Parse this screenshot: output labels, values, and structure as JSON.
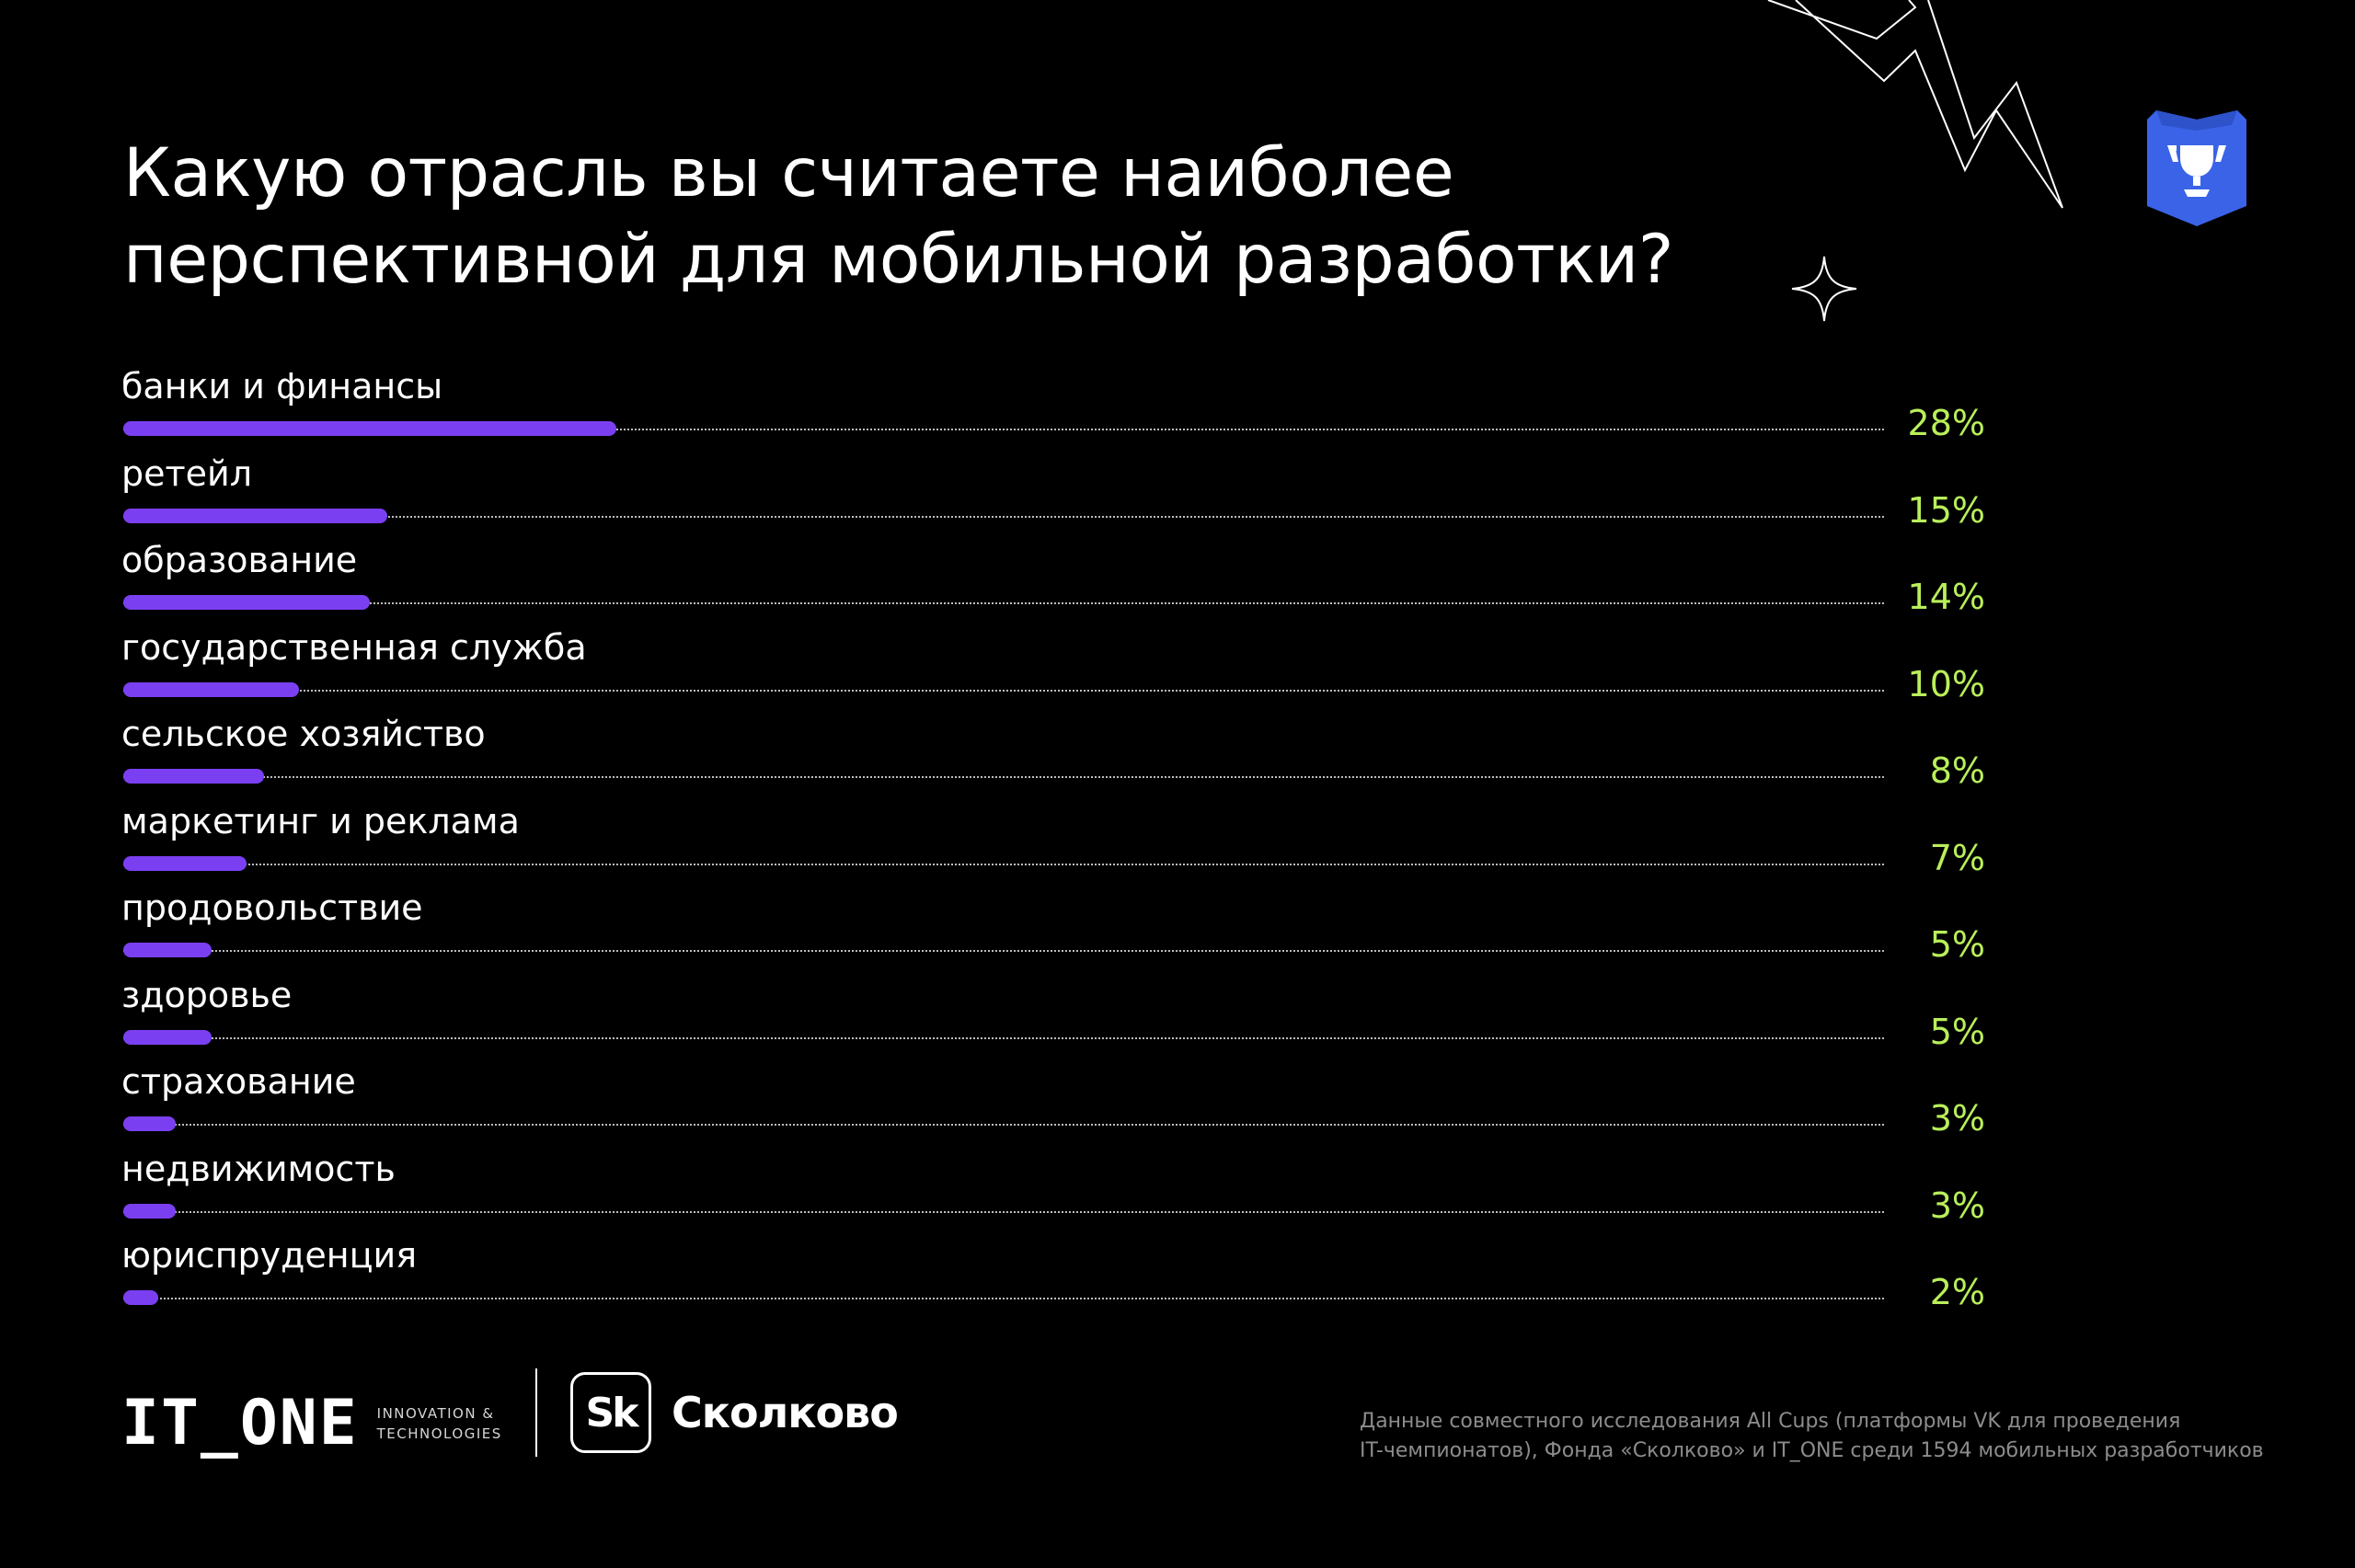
{
  "title_lines": [
    "Какую отрасль вы считаете наиболее",
    "перспективной для мобильной разработки?"
  ],
  "chart_data": {
    "type": "bar",
    "orientation": "horizontal",
    "title": "Какую отрасль вы считаете наиболее перспективной для мобильной разработки?",
    "unit": "%",
    "categories": [
      "банки и финансы",
      "ретейл",
      "образование",
      "государственная служба",
      "сельское хозяйство",
      "маркетинг и реклама",
      "продовольствие",
      "здоровье",
      "страхование",
      "недвижимость",
      "юриспруденция"
    ],
    "values": [
      28,
      15,
      14,
      10,
      8,
      7,
      5,
      5,
      3,
      3,
      2
    ],
    "labels": [
      "28%",
      "15%",
      "14%",
      "10%",
      "8%",
      "7%",
      "5%",
      "5%",
      "3%",
      "3%",
      "2%"
    ],
    "xlim": [
      0,
      100
    ],
    "grid": false,
    "legend": "none",
    "bar_color": "#7b3ff2",
    "value_color": "#b9ef5a"
  },
  "logos": {
    "itone": {
      "word": "IT_ONE",
      "tagline": [
        "INNOVATION &",
        "TECHNOLOGIES"
      ]
    },
    "skolkovo": {
      "mark": "Sk",
      "word": "Сколково"
    }
  },
  "footnote_lines": [
    "Данные совместного исследования All Cups (платформы VK для проведения",
    "IT-чемпионатов), Фонда «Сколково» и IT_ONE среди 1594 мобильных разработчиков"
  ],
  "decorations": {
    "trophy_badge_color": "#3a63e8",
    "background": "#000000"
  }
}
